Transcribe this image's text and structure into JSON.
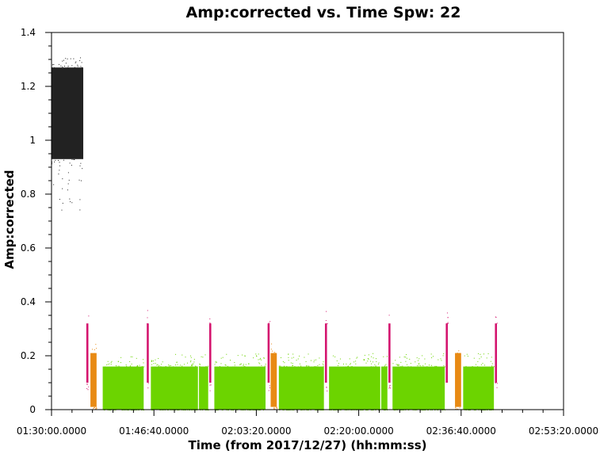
{
  "chart_data": {
    "type": "scatter",
    "title": "Amp:corrected vs. Time Spw: 22",
    "xlabel": "Time (from 2017/12/27) (hh:mm:ss)",
    "ylabel": "Amp:corrected",
    "xlim_seconds": [
      5400,
      10400
    ],
    "ylim": [
      0,
      1.4
    ],
    "x_ticks": [
      {
        "t": 5400,
        "label": "01:30:00.0000"
      },
      {
        "t": 6400,
        "label": "01:46:40.0000"
      },
      {
        "t": 7400,
        "label": "02:03:20.0000"
      },
      {
        "t": 8400,
        "label": "02:20:00.0000"
      },
      {
        "t": 9400,
        "label": "02:36:40.0000"
      },
      {
        "t": 10400,
        "label": "02:53:20.0000"
      }
    ],
    "y_ticks": [
      0,
      0.2,
      0.4,
      0.6,
      0.8,
      1,
      1.2,
      1.4
    ],
    "y_tick_labels": [
      "0",
      "0.2",
      "0.4",
      "0.6",
      "0.8",
      "1",
      "1.2",
      "1.4"
    ],
    "grid": false,
    "colors": {
      "black": "#222222",
      "magenta": "#d4146e",
      "orange": "#e88a14",
      "green": "#6cd400"
    },
    "series": [
      {
        "color": "black",
        "segments": [
          {
            "t0": 5400,
            "t1": 5710,
            "core": [
              0.93,
              1.27
            ],
            "spread": [
              0.74,
              1.31
            ]
          }
        ]
      },
      {
        "color": "magenta",
        "segments": [
          {
            "t0": 5740,
            "t1": 5760,
            "core": [
              0.1,
              0.32
            ],
            "spread": [
              0.07,
              0.37
            ]
          },
          {
            "t0": 6330,
            "t1": 6350,
            "core": [
              0.1,
              0.32
            ],
            "spread": [
              0.07,
              0.37
            ]
          },
          {
            "t0": 6940,
            "t1": 6960,
            "core": [
              0.1,
              0.32
            ],
            "spread": [
              0.07,
              0.37
            ]
          },
          {
            "t0": 7510,
            "t1": 7530,
            "core": [
              0.1,
              0.32
            ],
            "spread": [
              0.07,
              0.37
            ]
          },
          {
            "t0": 8070,
            "t1": 8090,
            "core": [
              0.1,
              0.32
            ],
            "spread": [
              0.07,
              0.37
            ]
          },
          {
            "t0": 8690,
            "t1": 8710,
            "core": [
              0.1,
              0.32
            ],
            "spread": [
              0.07,
              0.37
            ]
          },
          {
            "t0": 9250,
            "t1": 9270,
            "core": [
              0.1,
              0.32
            ],
            "spread": [
              0.07,
              0.37
            ]
          },
          {
            "t0": 9730,
            "t1": 9750,
            "core": [
              0.1,
              0.32
            ],
            "spread": [
              0.07,
              0.37
            ]
          }
        ]
      },
      {
        "color": "orange",
        "segments": [
          {
            "t0": 5780,
            "t1": 5840,
            "core": [
              0.01,
              0.21
            ],
            "spread": [
              0.0,
              0.25
            ]
          },
          {
            "t0": 7540,
            "t1": 7600,
            "core": [
              0.01,
              0.21
            ],
            "spread": [
              0.0,
              0.25
            ]
          },
          {
            "t0": 9340,
            "t1": 9400,
            "core": [
              0.01,
              0.21
            ],
            "spread": [
              0.0,
              0.25
            ]
          }
        ]
      },
      {
        "color": "green",
        "segments": [
          {
            "t0": 5900,
            "t1": 6300,
            "core": [
              0.0,
              0.16
            ],
            "spread": [
              0.0,
              0.21
            ]
          },
          {
            "t0": 6370,
            "t1": 6830,
            "core": [
              0.0,
              0.16
            ],
            "spread": [
              0.0,
              0.21
            ]
          },
          {
            "t0": 6840,
            "t1": 6930,
            "core": [
              0.0,
              0.16
            ],
            "spread": [
              0.0,
              0.21
            ]
          },
          {
            "t0": 6990,
            "t1": 7490,
            "core": [
              0.0,
              0.16
            ],
            "spread": [
              0.0,
              0.21
            ]
          },
          {
            "t0": 7620,
            "t1": 8060,
            "core": [
              0.0,
              0.16
            ],
            "spread": [
              0.0,
              0.21
            ]
          },
          {
            "t0": 8110,
            "t1": 8610,
            "core": [
              0.0,
              0.16
            ],
            "spread": [
              0.0,
              0.21
            ]
          },
          {
            "t0": 8620,
            "t1": 8680,
            "core": [
              0.0,
              0.16
            ],
            "spread": [
              0.0,
              0.21
            ]
          },
          {
            "t0": 8730,
            "t1": 9240,
            "core": [
              0.0,
              0.16
            ],
            "spread": [
              0.0,
              0.21
            ]
          },
          {
            "t0": 9420,
            "t1": 9720,
            "core": [
              0.0,
              0.16
            ],
            "spread": [
              0.0,
              0.21
            ]
          }
        ]
      }
    ]
  }
}
